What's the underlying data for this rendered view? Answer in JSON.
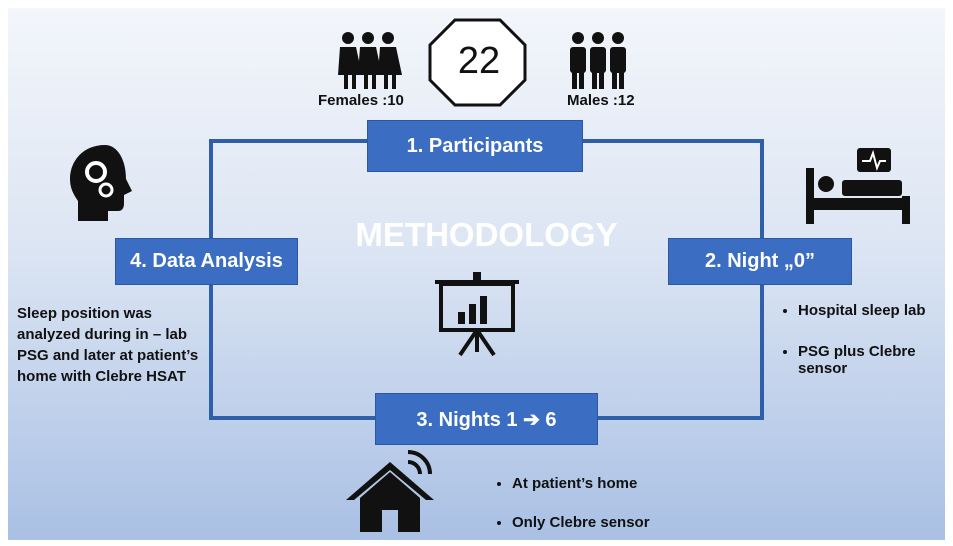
{
  "title": "METHODOLOGY",
  "participants": {
    "count": 22,
    "females": "Females :10",
    "males": "Males :12"
  },
  "steps": [
    {
      "label": "1. Participants"
    },
    {
      "label": "2. Night „0”",
      "bullets": [
        "Hospital sleep lab",
        "PSG plus Clebre sensor"
      ]
    },
    {
      "label": "3. Nights 1 ➔ 6",
      "bullets": [
        "At patient’s home",
        "Only Clebre sensor"
      ]
    },
    {
      "label": "4. Data Analysis",
      "description": "Sleep position was analyzed during in – lab PSG and later at patient’s home with Clebre HSAT"
    }
  ]
}
